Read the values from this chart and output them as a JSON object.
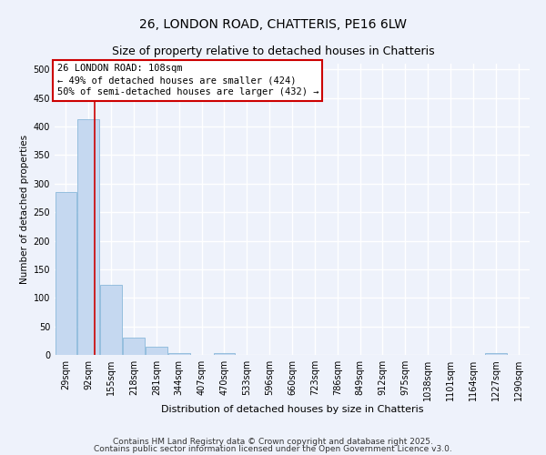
{
  "title": "26, LONDON ROAD, CHATTERIS, PE16 6LW",
  "subtitle": "Size of property relative to detached houses in Chatteris",
  "xlabel": "Distribution of detached houses by size in Chatteris",
  "ylabel": "Number of detached properties",
  "categories": [
    "29sqm",
    "92sqm",
    "155sqm",
    "218sqm",
    "281sqm",
    "344sqm",
    "407sqm",
    "470sqm",
    "533sqm",
    "596sqm",
    "660sqm",
    "723sqm",
    "786sqm",
    "849sqm",
    "912sqm",
    "975sqm",
    "1038sqm",
    "1101sqm",
    "1164sqm",
    "1227sqm",
    "1290sqm"
  ],
  "values": [
    285,
    413,
    122,
    30,
    15,
    3,
    0,
    3,
    0,
    0,
    0,
    0,
    0,
    0,
    0,
    0,
    0,
    0,
    0,
    3,
    0
  ],
  "bar_color": "#c5d8f0",
  "bar_edge_color": "#7aafd4",
  "ylim": [
    0,
    510
  ],
  "yticks": [
    0,
    50,
    100,
    150,
    200,
    250,
    300,
    350,
    400,
    450,
    500
  ],
  "red_line_x": 1.25,
  "annotation_line1": "26 LONDON ROAD: 108sqm",
  "annotation_line2": "← 49% of detached houses are smaller (424)",
  "annotation_line3": "50% of semi-detached houses are larger (432) →",
  "annotation_box_color": "#cc0000",
  "footnote1": "Contains HM Land Registry data © Crown copyright and database right 2025.",
  "footnote2": "Contains public sector information licensed under the Open Government Licence v3.0.",
  "background_color": "#eef2fb",
  "grid_color": "#ffffff",
  "title_fontsize": 10,
  "subtitle_fontsize": 9,
  "xlabel_fontsize": 8,
  "ylabel_fontsize": 7.5,
  "tick_fontsize": 7,
  "annot_fontsize": 7.5,
  "footnote_fontsize": 6.5
}
